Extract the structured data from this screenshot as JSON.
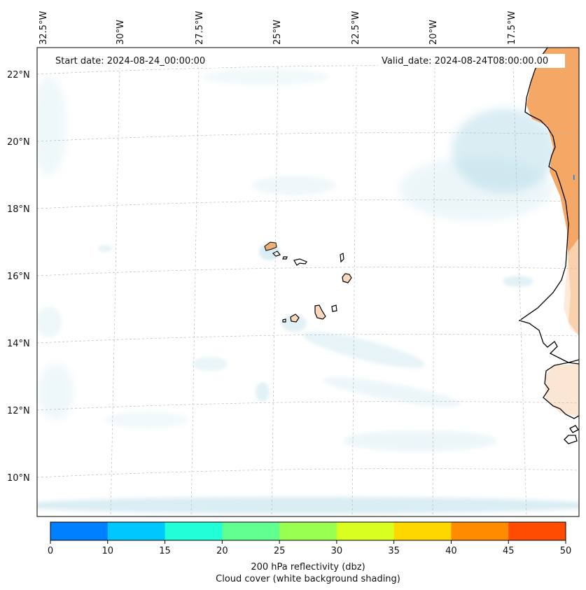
{
  "map": {
    "start_date_label": "Start date: 2024-08-24_00:00:00",
    "valid_date_label": "Valid_date: 2024-08-24T08:00:00.00",
    "lon_labels": [
      "32.5°W",
      "30°W",
      "27.5°W",
      "25°W",
      "22.5°W",
      "20°W",
      "17.5°W"
    ],
    "lat_labels": [
      "22°N",
      "20°N",
      "18°N",
      "16°N",
      "14°N",
      "12°N",
      "10°N"
    ],
    "colors": {
      "cloud": "#add8e6",
      "land": "#f4a35e",
      "land_light": "#fbe3cf",
      "coast": "#000000",
      "grid": "#bbbbbb"
    }
  },
  "colorbar": {
    "ticks": [
      "0",
      "10",
      "15",
      "20",
      "25",
      "30",
      "35",
      "40",
      "45",
      "50"
    ],
    "colors": [
      "#0080ff",
      "#00c8ff",
      "#20ffd8",
      "#60ff90",
      "#98ff50",
      "#d8ff20",
      "#ffd800",
      "#ff8c00",
      "#ff4c00"
    ],
    "label_line1": "200 hPa reflectivity (dbz)",
    "label_line2": "Cloud cover (white background shading)"
  }
}
